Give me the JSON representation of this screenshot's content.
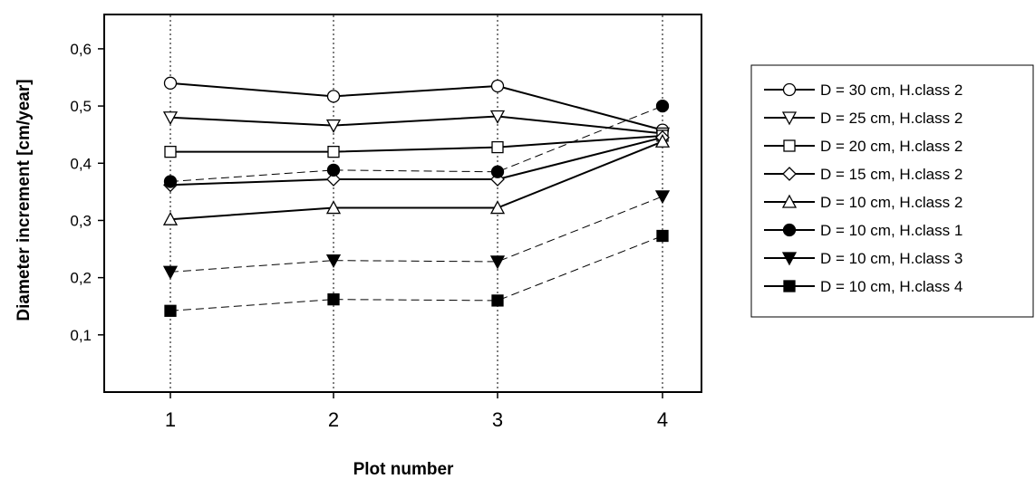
{
  "chart_data": {
    "type": "line",
    "title": "",
    "xlabel": "Plot number",
    "ylabel": "Diameter increment [cm/year]",
    "categories": [
      "1",
      "2",
      "3",
      "4"
    ],
    "yticks": [
      "0,1",
      "0,2",
      "0,3",
      "0,4",
      "0,5",
      "0,6"
    ],
    "ylim": [
      0.0,
      0.66
    ],
    "grid": "vertical dotted lines at each plot number",
    "legend_position": "right",
    "series": [
      {
        "name": "D = 30 cm, H.class 2",
        "marker": "circle-open",
        "line": "solid",
        "values": [
          0.54,
          0.517,
          0.535,
          0.458
        ]
      },
      {
        "name": "D = 25 cm, H.class 2",
        "marker": "triangle-down-open",
        "line": "solid",
        "values": [
          0.48,
          0.466,
          0.482,
          0.452
        ]
      },
      {
        "name": "D = 20 cm, H.class 2",
        "marker": "square-open",
        "line": "solid",
        "values": [
          0.42,
          0.42,
          0.428,
          0.448
        ]
      },
      {
        "name": "D = 15 cm, H.class 2",
        "marker": "diamond-open",
        "line": "solid",
        "values": [
          0.362,
          0.372,
          0.372,
          0.445
        ]
      },
      {
        "name": "D = 10 cm, H.class 2",
        "marker": "triangle-up-open",
        "line": "solid",
        "values": [
          0.302,
          0.322,
          0.322,
          0.438
        ]
      },
      {
        "name": "D = 10 cm, H.class 1",
        "marker": "circle-filled",
        "line": "dashed",
        "values": [
          0.368,
          0.388,
          0.385,
          0.5
        ]
      },
      {
        "name": "D = 10 cm, H.class 3",
        "marker": "triangle-down-filled",
        "line": "dashed",
        "values": [
          0.21,
          0.23,
          0.228,
          0.342
        ]
      },
      {
        "name": "D = 10 cm, H.class 4",
        "marker": "square-filled",
        "line": "dashed",
        "values": [
          0.142,
          0.162,
          0.16,
          0.273
        ]
      }
    ]
  }
}
